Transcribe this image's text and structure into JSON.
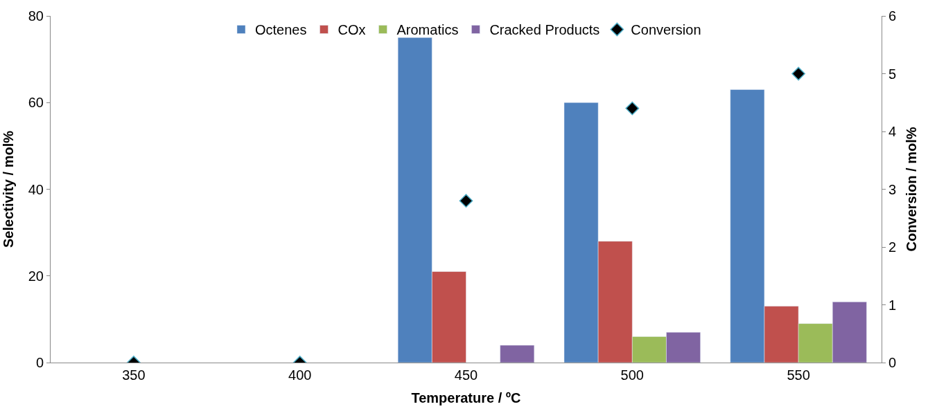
{
  "chart_data": {
    "type": "bar",
    "xlabel": "Temperature / ºC",
    "ylabel": "Selectivity / mol%",
    "y2label": "Conversion / mol%",
    "categories": [
      "350",
      "400",
      "450",
      "500",
      "550"
    ],
    "series": [
      {
        "name": "Octenes",
        "color": "#4f81bd",
        "values": [
          null,
          null,
          75,
          60,
          63
        ]
      },
      {
        "name": "COx",
        "color": "#c0504d",
        "values": [
          null,
          null,
          21,
          28,
          13
        ]
      },
      {
        "name": "Aromatics",
        "color": "#9bbb59",
        "values": [
          null,
          null,
          null,
          6,
          9
        ]
      },
      {
        "name": "Cracked Products",
        "color": "#8064a2",
        "values": [
          null,
          null,
          4,
          7,
          14
        ]
      },
      {
        "name": "Conversion",
        "type": "scatter",
        "axis": "y2",
        "marker": "diamond",
        "color": "#000000",
        "values": [
          0,
          0,
          2.8,
          4.4,
          5.0
        ]
      }
    ],
    "ylim": [
      0,
      80
    ],
    "yticks": [
      0,
      20,
      40,
      60,
      80
    ],
    "y2lim": [
      0,
      6
    ],
    "y2ticks": [
      0,
      1,
      2,
      3,
      4,
      5,
      6
    ],
    "legend": "top"
  }
}
